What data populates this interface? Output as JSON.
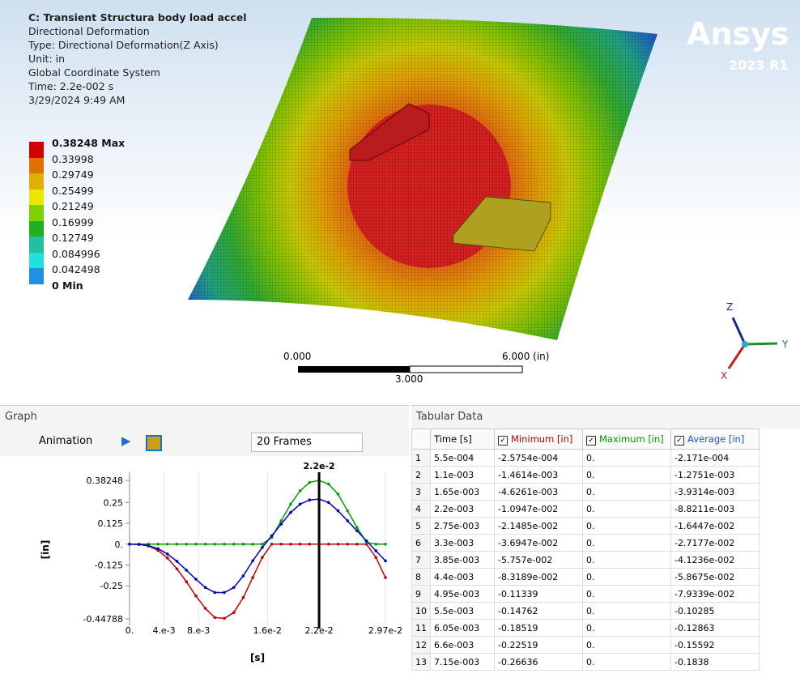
{
  "viewport": {
    "header": [
      "C: Transient Structura body load accel",
      "Directional Deformation",
      "Type: Directional Deformation(Z Axis)",
      "Unit: in",
      "Global Coordinate System",
      "Time: 2.2e-002 s",
      "3/29/2024 9:49 AM"
    ],
    "legend": [
      "0.38248 Max",
      "0.33998",
      "0.29749",
      "0.25499",
      "0.21249",
      "0.16999",
      "0.12749",
      "0.084996",
      "0.042498",
      "0 Min"
    ],
    "logo": "Ansys",
    "version": "2023 R1",
    "scale": {
      "left": "0.000",
      "right": "6.000 (in)",
      "middle": "3.000"
    },
    "triad": {
      "z": "Z",
      "y": "Y",
      "x": "X"
    }
  },
  "graph_panel": {
    "title": "Graph",
    "animation": "Animation",
    "frames": "20 Frames"
  },
  "chart_data": {
    "type": "line",
    "x_label": "[s]",
    "y_label": "[in]",
    "cursor": {
      "value": 0.022,
      "label": "2.2e-2"
    },
    "xlim": [
      0,
      0.0297
    ],
    "ylim": [
      -0.44788,
      0.38248
    ],
    "xticks": [
      {
        "value": 0,
        "label": "0."
      },
      {
        "value": 0.004,
        "label": "4.e-3"
      },
      {
        "value": 0.008,
        "label": "8.e-3"
      },
      {
        "value": 0.016,
        "label": "1.6e-2"
      },
      {
        "value": 0.022,
        "label": "2.2e-2"
      },
      {
        "value": 0.0297,
        "label": "2.97e-2"
      }
    ],
    "yticks": [
      0.38248,
      0.25,
      0.125,
      {
        "value": 0,
        "label": "0."
      },
      -0.125,
      -0.25,
      -0.44788
    ],
    "x": [
      0,
      0.0011,
      0.0022,
      0.0033,
      0.0044,
      0.0055,
      0.0066,
      0.0077,
      0.0088,
      0.0099,
      0.011,
      0.0121,
      0.0132,
      0.0143,
      0.0154,
      0.0165,
      0.0176,
      0.0187,
      0.0198,
      0.0209,
      0.022,
      0.0231,
      0.0242,
      0.0253,
      0.0264,
      0.0275,
      0.0286,
      0.0297
    ],
    "series": [
      {
        "color": "#c00000",
        "values": [
          0,
          -0.0015,
          -0.011,
          -0.037,
          -0.083,
          -0.148,
          -0.225,
          -0.31,
          -0.385,
          -0.44,
          -0.445,
          -0.41,
          -0.32,
          -0.2,
          -0.08,
          0,
          0,
          0,
          0,
          0,
          0,
          0,
          0,
          0,
          0,
          0,
          -0.08,
          -0.2
        ]
      },
      {
        "color": "#00a000",
        "values": [
          0,
          0,
          0,
          0,
          0,
          0,
          0,
          0,
          0,
          0,
          0,
          0,
          0,
          0,
          0,
          0.04,
          0.14,
          0.24,
          0.32,
          0.37,
          0.38248,
          0.36,
          0.3,
          0.2,
          0.1,
          0.01,
          0,
          0
        ]
      },
      {
        "color": "#0000c0",
        "values": [
          0,
          -0.0013,
          -0.0088,
          -0.027,
          -0.059,
          -0.103,
          -0.156,
          -0.21,
          -0.26,
          -0.29,
          -0.29,
          -0.26,
          -0.19,
          -0.1,
          -0.02,
          0.05,
          0.12,
          0.19,
          0.24,
          0.265,
          0.27,
          0.25,
          0.2,
          0.14,
          0.08,
          0.02,
          -0.04,
          -0.1
        ]
      }
    ]
  },
  "table_panel": {
    "title": "Tabular Data"
  },
  "table": {
    "columns": [
      "Time [s]",
      "Minimum [in]",
      "Maximum [in]",
      "Average [in]"
    ],
    "rows": [
      [
        "1",
        "5.5e-004",
        "-2.5754e-004",
        "0.",
        "-2.171e-004"
      ],
      [
        "2",
        "1.1e-003",
        "-1.4614e-003",
        "0.",
        "-1.2751e-003"
      ],
      [
        "3",
        "1.65e-003",
        "-4.6261e-003",
        "0.",
        "-3.9314e-003"
      ],
      [
        "4",
        "2.2e-003",
        "-1.0947e-002",
        "0.",
        "-8.8211e-003"
      ],
      [
        "5",
        "2.75e-003",
        "-2.1485e-002",
        "0.",
        "-1.6447e-002"
      ],
      [
        "6",
        "3.3e-003",
        "-3.6947e-002",
        "0.",
        "-2.7177e-002"
      ],
      [
        "7",
        "3.85e-003",
        "-5.757e-002",
        "0.",
        "-4.1236e-002"
      ],
      [
        "8",
        "4.4e-003",
        "-8.3189e-002",
        "0.",
        "-5.8675e-002"
      ],
      [
        "9",
        "4.95e-003",
        "-0.11339",
        "0.",
        "-7.9339e-002"
      ],
      [
        "10",
        "5.5e-003",
        "-0.14762",
        "0.",
        "-0.10285"
      ],
      [
        "11",
        "6.05e-003",
        "-0.18519",
        "0.",
        "-0.12863"
      ],
      [
        "12",
        "6.6e-003",
        "-0.22519",
        "0.",
        "-0.15592"
      ],
      [
        "13",
        "7.15e-003",
        "-0.26636",
        "0.",
        "-0.1838"
      ]
    ]
  }
}
